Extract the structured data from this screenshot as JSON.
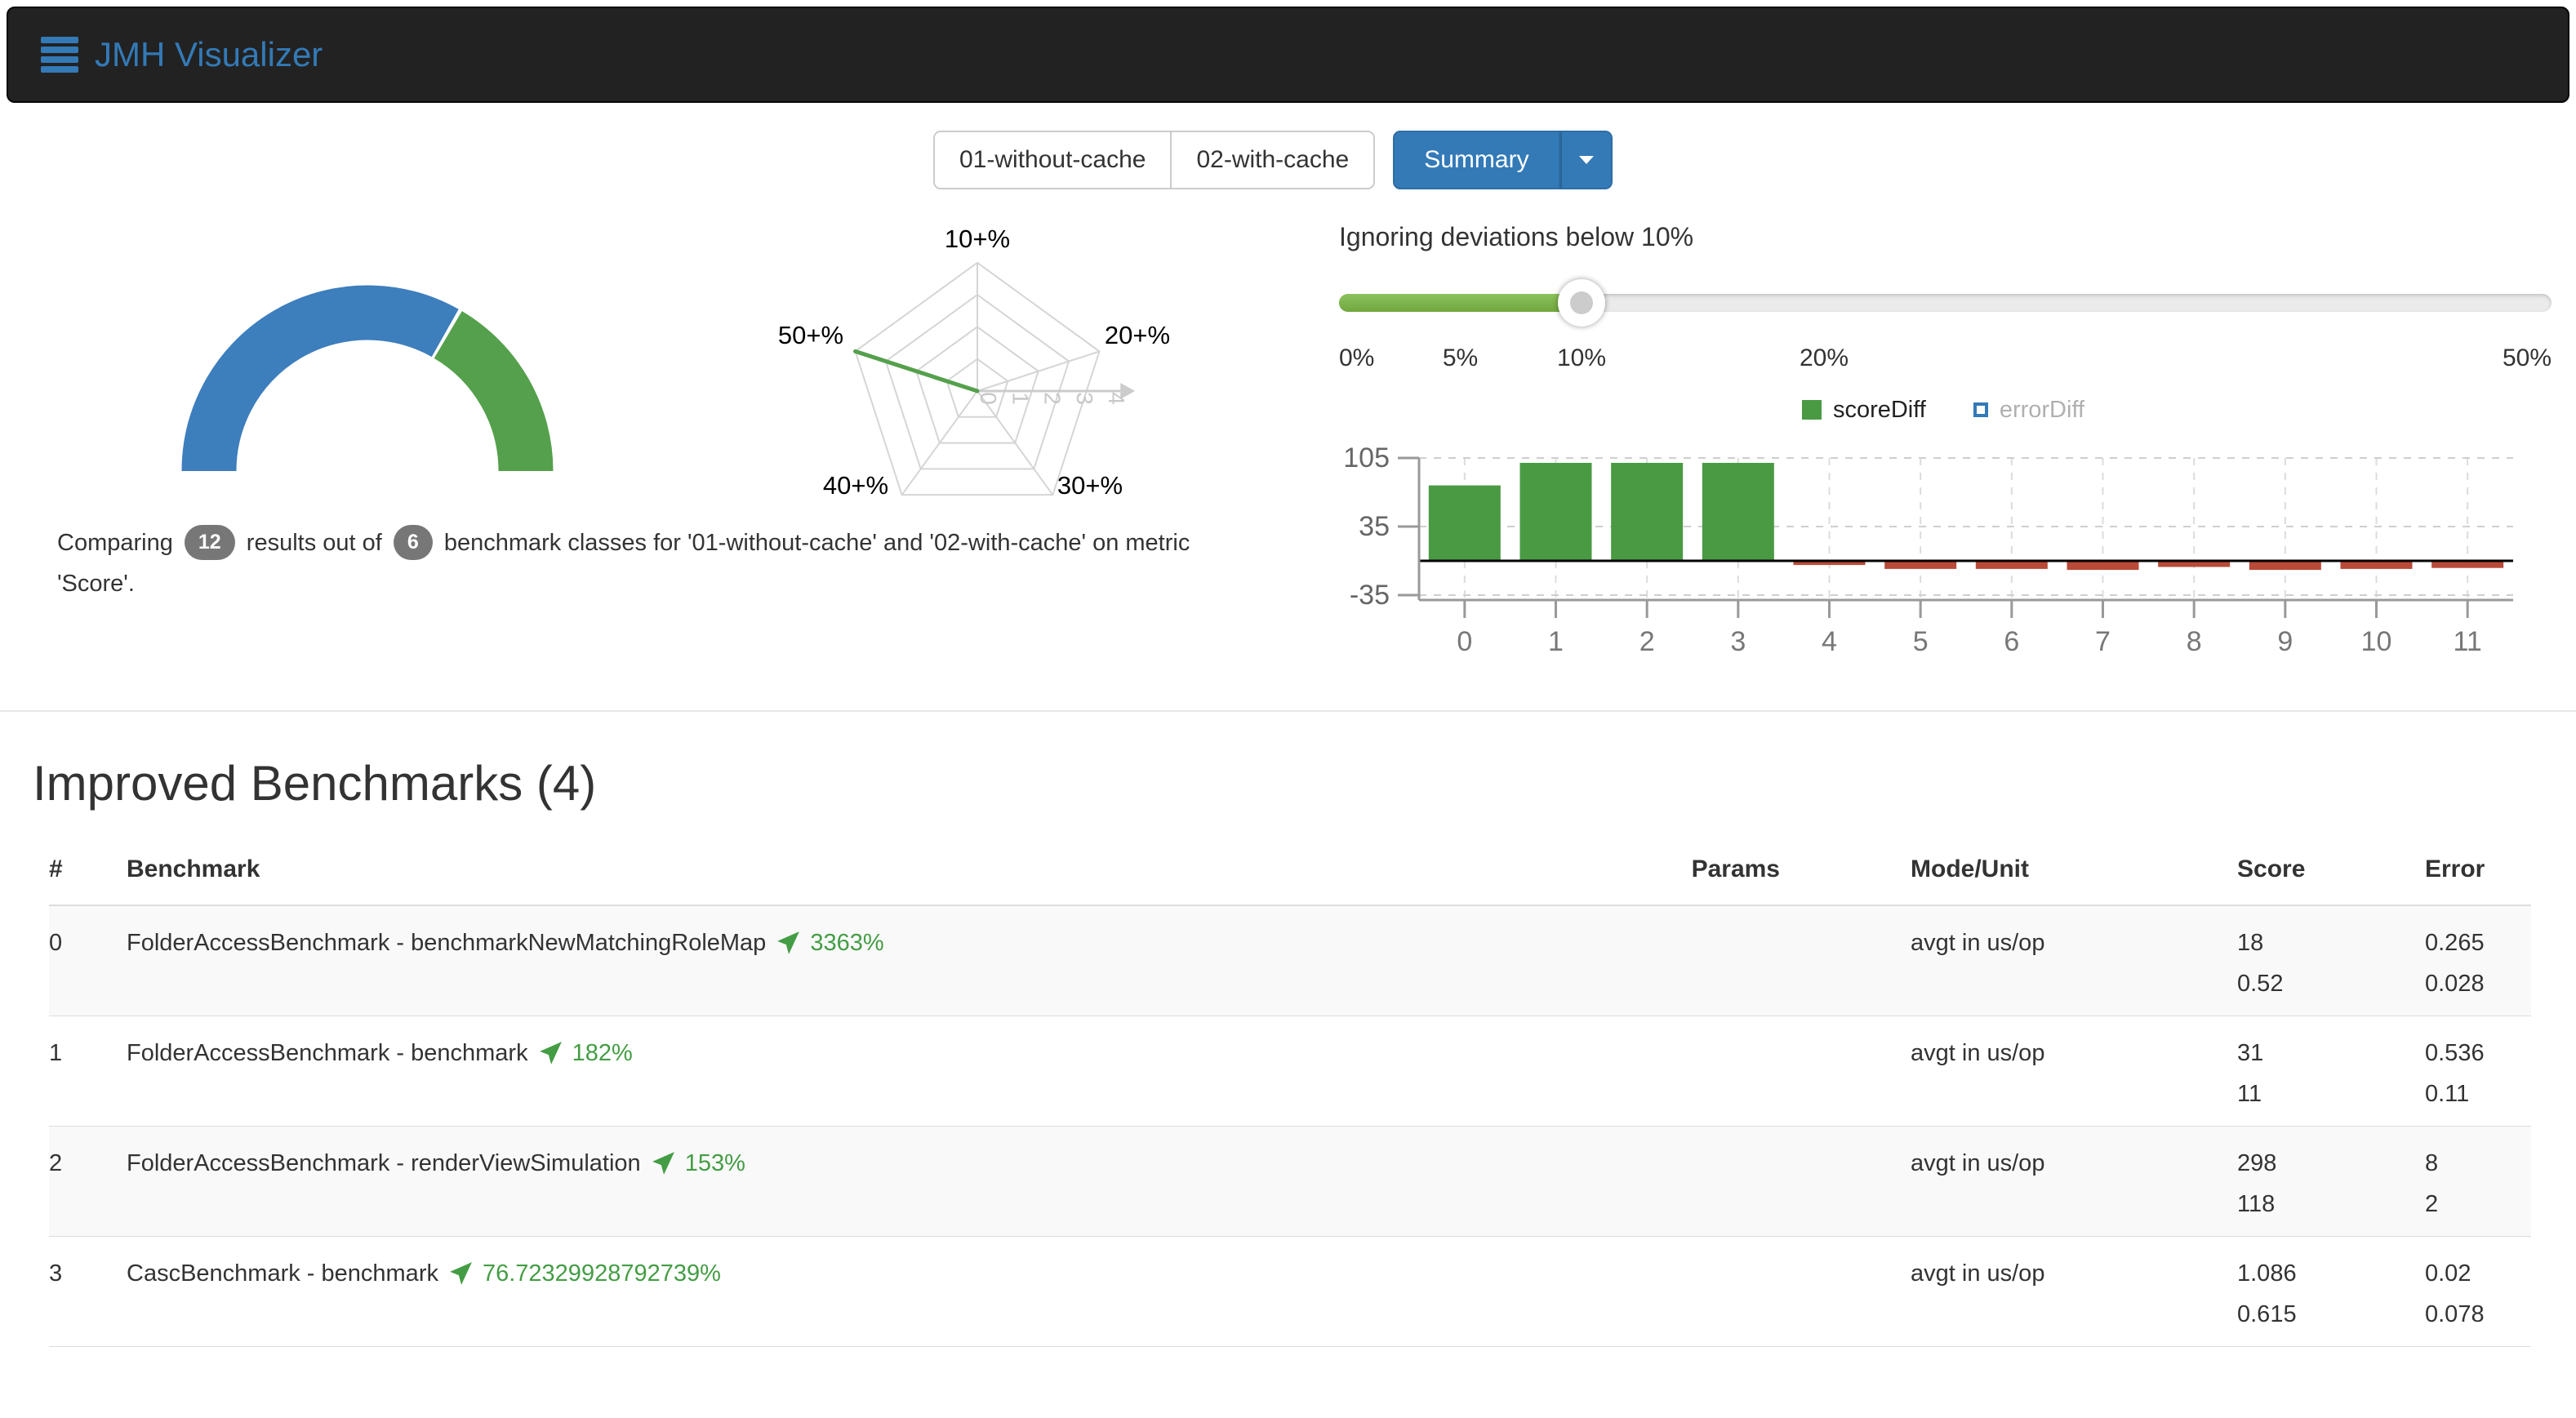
{
  "navbar": {
    "brand": "JMH Visualizer"
  },
  "tabs": {
    "runs": [
      "01-without-cache",
      "02-with-cache"
    ],
    "summary": "Summary"
  },
  "summary_line": {
    "t1": "Comparing",
    "results_count": "12",
    "t2": "results out of",
    "classes_count": "6",
    "t3": "benchmark classes for '01-without-cache' and '02-with-cache' on metric 'Score'."
  },
  "slider": {
    "title": "Ignoring deviations below 10%",
    "max": 50,
    "current": 10,
    "ticks": [
      {
        "label": "0%",
        "value": 0
      },
      {
        "label": "5%",
        "value": 5
      },
      {
        "label": "10%",
        "value": 10
      },
      {
        "label": "20%",
        "value": 20
      },
      {
        "label": "50%",
        "value": 50
      }
    ]
  },
  "legend": [
    {
      "label": "scoreDiff",
      "color": "#4a9a44",
      "active": true
    },
    {
      "label": "errorDiff",
      "color": "#337ab7",
      "active": false
    }
  ],
  "chart_data": [
    {
      "id": "result-gauge",
      "type": "pie",
      "subtype": "half-donut",
      "title": "",
      "segments": [
        {
          "label": "not-improved",
          "value": 8,
          "color": "#3d7ebd"
        },
        {
          "label": "improved",
          "value": 4,
          "color": "#55a04c"
        }
      ],
      "total": 12
    },
    {
      "id": "deviation-radar",
      "type": "radar",
      "axes": [
        "10+%",
        "20+%",
        "30+%",
        "40+%",
        "50+%"
      ],
      "values": [
        0,
        0,
        0,
        0,
        4
      ],
      "ticks": [
        0,
        1,
        2,
        3,
        4
      ],
      "max": 4,
      "line_color": "#55a04c",
      "grid_color": "#d5d5d5"
    },
    {
      "id": "diff-bars",
      "type": "bar",
      "categories": [
        "0",
        "1",
        "2",
        "3",
        "4",
        "5",
        "6",
        "7",
        "8",
        "9",
        "10",
        "11"
      ],
      "series": [
        {
          "name": "scoreDiff",
          "values": [
            77,
            100,
            100,
            100,
            -3,
            -7,
            -7,
            -8,
            -5,
            -8,
            -7,
            -6
          ]
        }
      ],
      "yticks": [
        105,
        35,
        -35
      ],
      "ylim": [
        -35,
        105
      ],
      "positive_color": "#4a9a44",
      "negative_color": "#b94a38",
      "legend_position": "top",
      "grid": true
    }
  ],
  "section_title": "Improved Benchmarks (4)",
  "table": {
    "headers": [
      "#",
      "Benchmark",
      "Params",
      "Mode/Unit",
      "Score",
      "Error"
    ],
    "rows": [
      {
        "num": "0",
        "name": "FolderAccessBenchmark - benchmarkNewMatchingRoleMap",
        "pct": "3363%",
        "params": "",
        "mode": "avgt in us/op",
        "score": [
          "18",
          "0.52"
        ],
        "error": [
          "0.265",
          "0.028"
        ]
      },
      {
        "num": "1",
        "name": "FolderAccessBenchmark - benchmark",
        "pct": "182%",
        "params": "",
        "mode": "avgt in us/op",
        "score": [
          "31",
          "11"
        ],
        "error": [
          "0.536",
          "0.11"
        ]
      },
      {
        "num": "2",
        "name": "FolderAccessBenchmark - renderViewSimulation",
        "pct": "153%",
        "params": "",
        "mode": "avgt in us/op",
        "score": [
          "298",
          "118"
        ],
        "error": [
          "8",
          "2"
        ]
      },
      {
        "num": "3",
        "name": "CascBenchmark - benchmark",
        "pct": "76.72329928792739%",
        "params": "",
        "mode": "avgt in us/op",
        "score": [
          "1.086",
          "0.615"
        ],
        "error": [
          "0.02",
          "0.078"
        ]
      }
    ]
  },
  "colors": {
    "accent": "#337ab7",
    "green": "#449d44",
    "red": "#b94a38",
    "badge": "#777777"
  }
}
